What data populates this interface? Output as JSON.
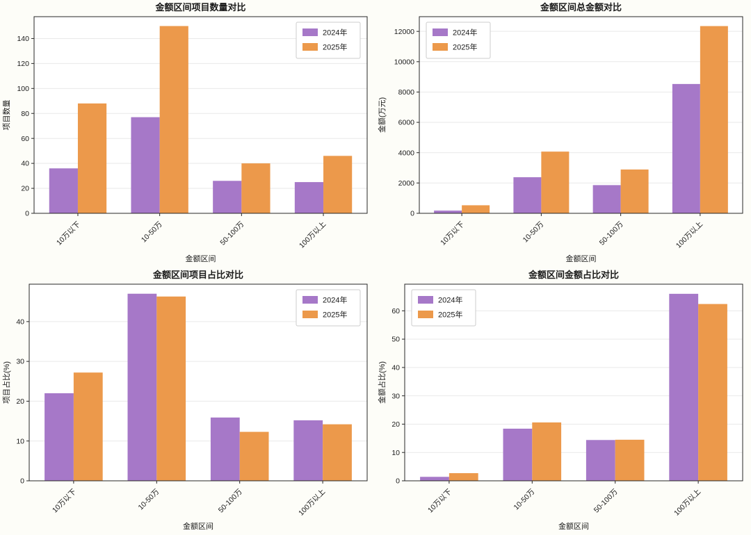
{
  "figure": {
    "background": "#fdfdf8",
    "categories_label": "金额区间",
    "series_names": [
      "2024年",
      "2025年"
    ],
    "series_colors": [
      "#a678c8",
      "#ec994b"
    ]
  },
  "chart_data": [
    {
      "id": "project-count",
      "type": "bar",
      "title": "金额区间项目数量对比",
      "xlabel": "金额区间",
      "ylabel": "项目数量",
      "categories": [
        "10万以下",
        "10-50万",
        "50-100万",
        "100万以上"
      ],
      "series": [
        {
          "name": "2024年",
          "color": "#a678c8",
          "values": [
            36,
            77,
            26,
            25
          ]
        },
        {
          "name": "2025年",
          "color": "#ec994b",
          "values": [
            88,
            150,
            40,
            46
          ]
        }
      ],
      "ylim": [
        0,
        157.5
      ],
      "yticks": [
        0,
        20,
        40,
        60,
        80,
        100,
        120,
        140
      ],
      "grid": true,
      "legend_position": "top-right"
    },
    {
      "id": "total-amount",
      "type": "bar",
      "title": "金额区间总金额对比",
      "xlabel": "金额区间",
      "ylabel": "金额(万元)",
      "categories": [
        "10万以下",
        "10-50万",
        "50-100万",
        "100万以上"
      ],
      "series": [
        {
          "name": "2024年",
          "color": "#a678c8",
          "values": [
            180,
            2380,
            1860,
            8530
          ]
        },
        {
          "name": "2025年",
          "color": "#ec994b",
          "values": [
            530,
            4070,
            2890,
            12350
          ]
        }
      ],
      "ylim": [
        0,
        12970
      ],
      "yticks": [
        0,
        2000,
        4000,
        6000,
        8000,
        10000,
        12000
      ],
      "grid": true,
      "legend_position": "top-left"
    },
    {
      "id": "project-share",
      "type": "bar",
      "title": "金额区间项目占比对比",
      "xlabel": "金额区间",
      "ylabel": "项目占比(%)",
      "categories": [
        "10万以下",
        "10-50万",
        "50-100万",
        "100万以上"
      ],
      "series": [
        {
          "name": "2024年",
          "color": "#a678c8",
          "values": [
            22.0,
            47.0,
            15.9,
            15.2
          ]
        },
        {
          "name": "2025年",
          "color": "#ec994b",
          "values": [
            27.2,
            46.3,
            12.3,
            14.2
          ]
        }
      ],
      "ylim": [
        0,
        49.4
      ],
      "yticks": [
        0,
        10,
        20,
        30,
        40
      ],
      "grid": true,
      "legend_position": "top-right"
    },
    {
      "id": "amount-share",
      "type": "bar",
      "title": "金额区间金额占比对比",
      "xlabel": "金额区间",
      "ylabel": "金额占比(%)",
      "categories": [
        "10万以下",
        "10-50万",
        "50-100万",
        "100万以上"
      ],
      "series": [
        {
          "name": "2024年",
          "color": "#a678c8",
          "values": [
            1.4,
            18.4,
            14.4,
            66.0
          ]
        },
        {
          "name": "2025年",
          "color": "#ec994b",
          "values": [
            2.7,
            20.6,
            14.5,
            62.4
          ]
        }
      ],
      "ylim": [
        0,
        69.4
      ],
      "yticks": [
        0,
        10,
        20,
        30,
        40,
        50,
        60
      ],
      "grid": true,
      "legend_position": "top-left"
    }
  ]
}
